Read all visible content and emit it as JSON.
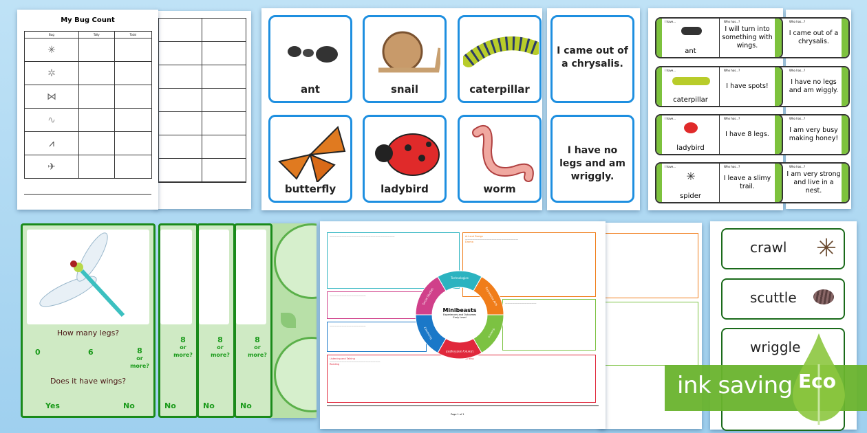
{
  "bug_count": {
    "title": "My Bug Count",
    "headers": [
      "Bug",
      "Tally",
      "Total"
    ],
    "rows": 6
  },
  "flashcards": {
    "words": [
      "ant",
      "snail",
      "caterpillar",
      "butterfly",
      "ladybird",
      "worm"
    ],
    "sentences": [
      "I came out of a chrysalis.",
      "I have no legs and am wriggly."
    ]
  },
  "loop_cards": {
    "i_have": "I have...",
    "who_has": "Who has...?",
    "cards": [
      {
        "word": "ant",
        "clue": "I will turn into something with wings."
      },
      {
        "word": "caterpillar",
        "clue": "I have spots!"
      },
      {
        "word": "ladybird",
        "clue": "I have 8 legs."
      },
      {
        "word": "spider",
        "clue": "I leave a slimy trail."
      }
    ],
    "back_clues": [
      "I came out of a chrysalis.",
      "I have no legs and am wiggly.",
      "I am very busy making honey!",
      "I am very strong and live in a nest."
    ]
  },
  "sorting_cards": {
    "q1": "How many legs?",
    "opt0": "0",
    "opt6": "6",
    "opt8": "8",
    "opt8b": "or more?",
    "q2": "Does it have wings?",
    "yes": "Yes",
    "no": "No"
  },
  "planner": {
    "title": "Minibeasts",
    "sub1": "Experiences and Outcomes",
    "sub2": "Early Level",
    "footer": "Page 1 of 1",
    "segments": [
      {
        "label": "Technologies",
        "color": "#2bb3c0"
      },
      {
        "label": "Expressive Arts",
        "color": "#f07d1a"
      },
      {
        "label": "Science",
        "color": "#7cc242"
      },
      {
        "label": "Literacy and English",
        "color": "#e0283c"
      },
      {
        "label": "Numeracy",
        "color": "#1a78c8"
      },
      {
        "label": "Social Studies",
        "color": "#d0408a"
      }
    ],
    "headings": [
      "Art and Design",
      "Drama",
      "Listening and Talking",
      "Reading",
      "Writing"
    ]
  },
  "word_cards": [
    "crawl",
    "scuttle",
    "wriggle"
  ],
  "banner": {
    "text": "ink saving",
    "eco": "Eco",
    "color": "#6ab42e"
  }
}
